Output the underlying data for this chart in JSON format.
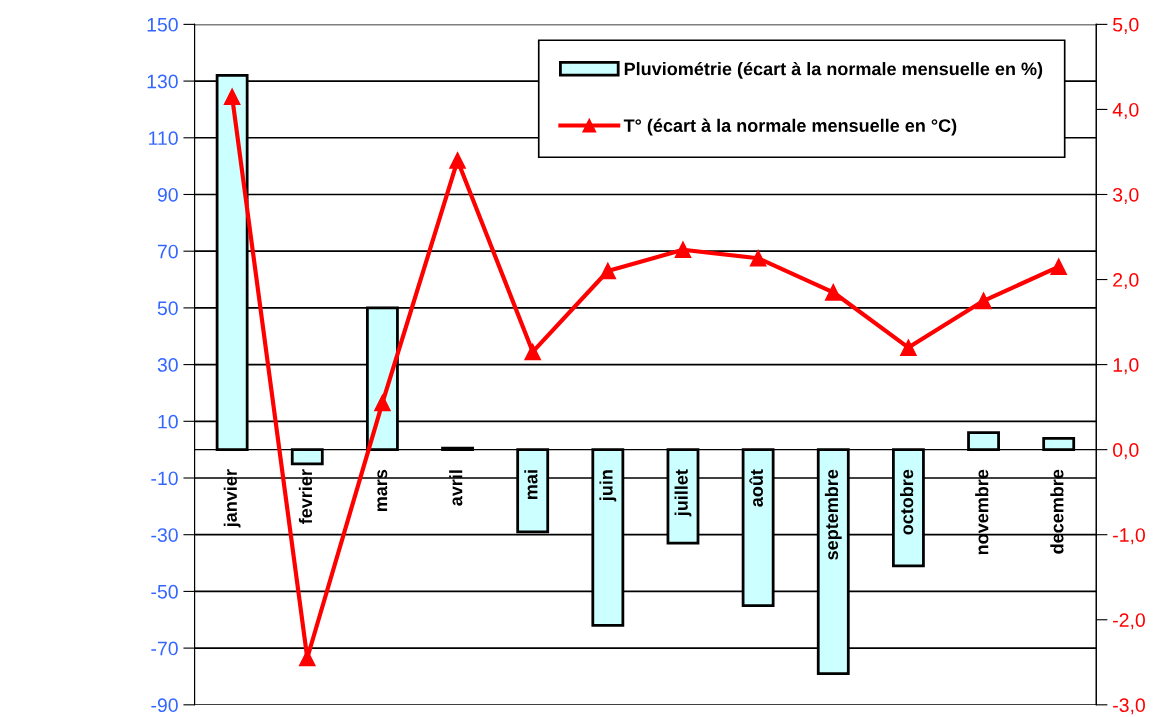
{
  "chart_data": {
    "type": "bar",
    "categories": [
      "janvier",
      "fevrier",
      "mars",
      "avril",
      "mai",
      "juin",
      "juillet",
      "août",
      "septembre",
      "octobre",
      "novembre",
      "decembre"
    ],
    "series": [
      {
        "name": "Pluviométrie (écart à la normale mensuelle en %)",
        "color": "#ccffff",
        "values": [
          132,
          -5,
          50,
          0.5,
          -29,
          -62,
          -33,
          -55,
          -79,
          -41,
          6,
          4
        ]
      },
      {
        "name": "T° (écart à la normale mensuelle en °C)",
        "type": "line",
        "axis": "y2",
        "color": "#ff0000",
        "marker": "triangle",
        "values": [
          4.15,
          -2.45,
          0.55,
          3.4,
          1.15,
          2.1,
          2.35,
          2.25,
          1.85,
          1.2,
          1.75,
          2.15
        ]
      }
    ],
    "ylim": [
      -90,
      150
    ],
    "yticks": [
      -90,
      -70,
      -50,
      -30,
      -10,
      10,
      30,
      50,
      70,
      90,
      110,
      130,
      150
    ],
    "y2lim": [
      -3,
      5
    ],
    "y2ticks": [
      {
        "value": -3,
        "label": "-3,0"
      },
      {
        "value": -2,
        "label": "-2,0"
      },
      {
        "value": -1,
        "label": "-1,0"
      },
      {
        "value": 0,
        "label": "0,0"
      },
      {
        "value": 1,
        "label": "1,0"
      },
      {
        "value": 2,
        "label": "2,0"
      },
      {
        "value": 3,
        "label": "3,0"
      },
      {
        "value": 4,
        "label": "4,0"
      },
      {
        "value": 5,
        "label": "5,0"
      }
    ],
    "grid": "y",
    "legend": "top right"
  }
}
